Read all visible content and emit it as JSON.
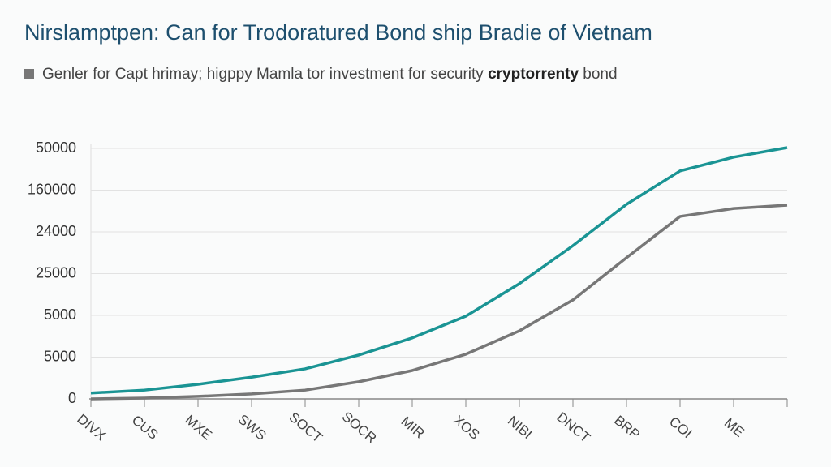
{
  "chart_data": {
    "type": "line",
    "title": "Nirslamptpen: Can for Trodoratured Bond ship Bradie of Vietnam",
    "subtitle": {
      "text": "Genler for Capt hrimay; higppy Mamla tor investment for security",
      "emphasis": "cryptorrenty",
      "tail": "bond"
    },
    "categories": [
      "DIVX",
      "CUS",
      "MXE",
      "SWS",
      "SOCT",
      "SOCR",
      "MIR",
      "XOS",
      "NIBI",
      "DNCT",
      "BRP",
      "COI",
      "ME",
      null
    ],
    "series": [
      {
        "color": "#1a9494",
        "values": [
          0.14,
          0.21,
          0.35,
          0.52,
          0.72,
          1.05,
          1.46,
          1.98,
          2.76,
          3.67,
          4.66,
          5.46,
          5.79,
          6.02
        ]
      },
      {
        "color": "#777777",
        "values": [
          0,
          0.02,
          0.06,
          0.12,
          0.21,
          0.41,
          0.68,
          1.07,
          1.63,
          2.37,
          3.38,
          4.37,
          4.56,
          4.64
        ]
      }
    ],
    "ylim": [
      0,
      6
    ],
    "yticks": [
      {
        "value": 0,
        "label": "0"
      },
      {
        "value": 1,
        "label": "5000"
      },
      {
        "value": 2,
        "label": "5000"
      },
      {
        "value": 3,
        "label": "25000"
      },
      {
        "value": 4,
        "label": "24000"
      },
      {
        "value": 5,
        "label": "160000"
      },
      {
        "value": 6,
        "label": "50000"
      }
    ],
    "grid": true
  }
}
